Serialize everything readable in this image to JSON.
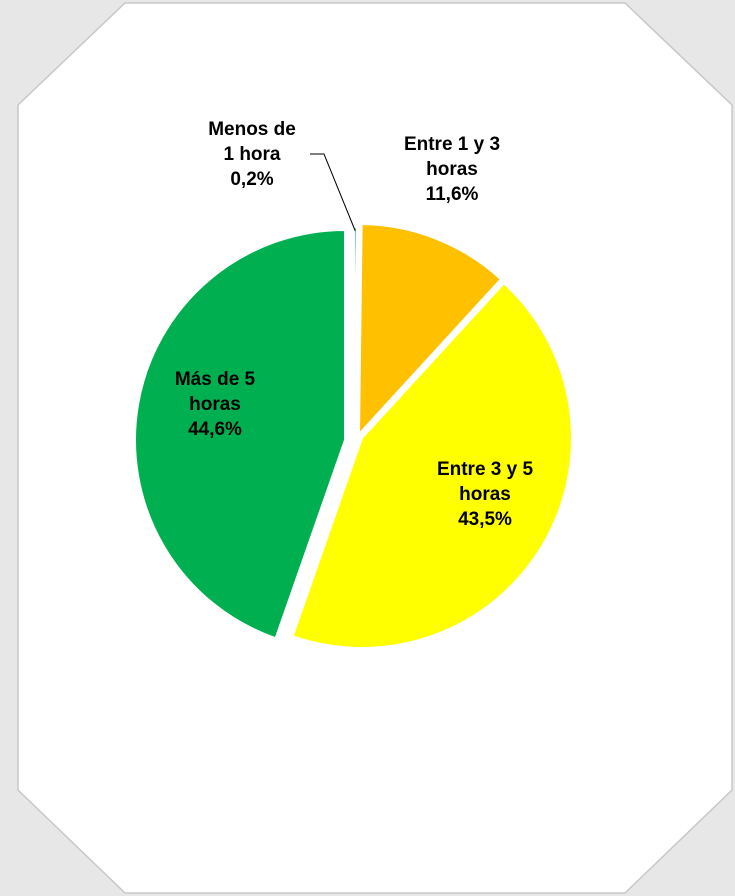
{
  "colors": {
    "page_background": "#e7e7e7",
    "card_background": "#ffffff",
    "card_border": "#c8c8c8",
    "separator": "#ffffff",
    "leader_line": "#000000"
  },
  "chart_data": {
    "type": "pie",
    "title": "",
    "start_angle_deg": 0,
    "direction": "clockwise",
    "exploded": true,
    "slices": [
      {
        "label_lines": [
          "Menos de",
          "1 hora",
          "0,2%"
        ],
        "category": "Menos de 1 hora",
        "value": 0.2,
        "value_label": "0,2%",
        "color": "#00b050"
      },
      {
        "label_lines": [
          "Entre 1 y 3",
          "horas",
          "11,6%"
        ],
        "category": "Entre 1 y 3 horas",
        "value": 11.6,
        "value_label": "11,6%",
        "color": "#ffc000"
      },
      {
        "label_lines": [
          "Entre 3 y 5",
          "horas",
          "43,5%"
        ],
        "category": "Entre 3 y 5 horas",
        "value": 43.5,
        "value_label": "43,5%",
        "color": "#ffff00"
      },
      {
        "label_lines": [
          "Más de 5",
          "horas",
          "44,6%"
        ],
        "category": "Más de 5 horas",
        "value": 44.6,
        "value_label": "44,6%",
        "color": "#00b050"
      }
    ]
  }
}
